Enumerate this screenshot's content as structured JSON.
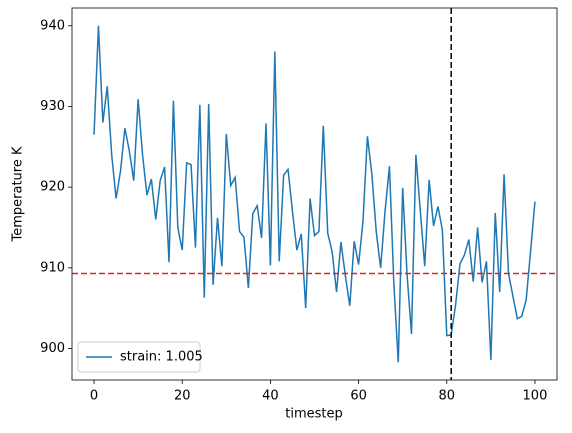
{
  "chart_data": {
    "type": "line",
    "xlabel": "timestep",
    "ylabel": "Temperature K",
    "x": [
      0,
      1,
      2,
      3,
      4,
      5,
      6,
      7,
      8,
      9,
      10,
      11,
      12,
      13,
      14,
      15,
      16,
      17,
      18,
      19,
      20,
      21,
      22,
      23,
      24,
      25,
      26,
      27,
      28,
      29,
      30,
      31,
      32,
      33,
      34,
      35,
      36,
      37,
      38,
      39,
      40,
      41,
      42,
      43,
      44,
      45,
      46,
      47,
      48,
      49,
      50,
      51,
      52,
      53,
      54,
      55,
      56,
      57,
      58,
      59,
      60,
      61,
      62,
      63,
      64,
      65,
      66,
      67,
      68,
      69,
      70,
      71,
      72,
      73,
      74,
      75,
      76,
      77,
      78,
      79,
      80,
      81,
      82,
      83,
      84,
      85,
      86,
      87,
      88,
      89,
      90,
      91,
      92,
      93,
      94,
      95,
      96,
      97,
      98,
      99,
      100
    ],
    "series": [
      {
        "name": "strain: 1.005",
        "color": "#1f77b4",
        "values": [
          926.5,
          940,
          928,
          932.5,
          924,
          918.6,
          922,
          927.3,
          924.5,
          920.8,
          930.9,
          924,
          919,
          921,
          916,
          920.8,
          922.5,
          910.7,
          930.7,
          915,
          912.2,
          923,
          922.8,
          912.5,
          930.2,
          906.3,
          930.3,
          907.9,
          916.2,
          910.2,
          926.6,
          920.2,
          921.2,
          914.5,
          913.8,
          907.5,
          916.7,
          917.7,
          913.7,
          927.9,
          910.3,
          936.8,
          910.8,
          921.5,
          922.2,
          917,
          912.2,
          914.2,
          905,
          918.6,
          914,
          914.5,
          927.6,
          914.3,
          912,
          907,
          913.2,
          909,
          905.3,
          913.3,
          910.4,
          915.8,
          926.3,
          921.7,
          914.5,
          910,
          917,
          922.6,
          908,
          898.3,
          919.9,
          909.1,
          901.8,
          924,
          917,
          910.2,
          920.9,
          915.2,
          917.6,
          914.7,
          901.6,
          901.7,
          905.4,
          910.5,
          911.6,
          913.5,
          908.3,
          915,
          908.2,
          910.8,
          898.6,
          916.8,
          907,
          921.6,
          909.3,
          906.5,
          903.7,
          904,
          906,
          912,
          918.2
        ]
      }
    ],
    "hlines": [
      {
        "y": 909.3,
        "color": "#d62728"
      }
    ],
    "vlines": [
      {
        "x": 81,
        "color": "#000000"
      }
    ],
    "xlim": [
      -5,
      105
    ],
    "xticks": [
      0,
      20,
      40,
      60,
      80,
      100
    ],
    "ylim": [
      896.1,
      942.2
    ],
    "yticks": [
      900,
      910,
      920,
      930,
      940
    ],
    "legend": "lower left"
  }
}
